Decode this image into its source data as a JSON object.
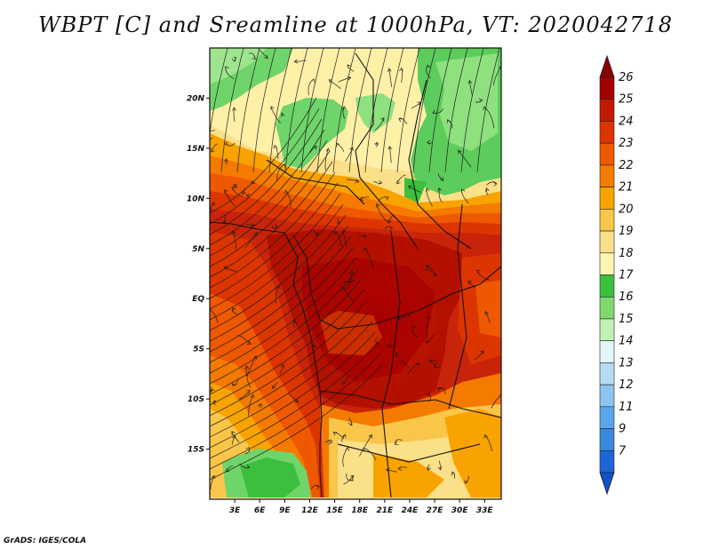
{
  "title": "WBPT [C] and Sreamline at 1000hPa, VT: 2020042718",
  "credit": "GrADS: IGES/COLA",
  "map": {
    "lon_range": [
      0,
      35
    ],
    "lat_range": [
      -20,
      25
    ],
    "lat_ticks": [
      {
        "value": 20,
        "label": "20N"
      },
      {
        "value": 15,
        "label": "15N"
      },
      {
        "value": 10,
        "label": "10N"
      },
      {
        "value": 5,
        "label": "5N"
      },
      {
        "value": 0,
        "label": "EQ"
      },
      {
        "value": -5,
        "label": "5S"
      },
      {
        "value": -10,
        "label": "10S"
      },
      {
        "value": -15,
        "label": "15S"
      }
    ],
    "lon_ticks": [
      {
        "value": 3,
        "label": "3E"
      },
      {
        "value": 6,
        "label": "6E"
      },
      {
        "value": 9,
        "label": "9E"
      },
      {
        "value": 12,
        "label": "12E"
      },
      {
        "value": 15,
        "label": "15E"
      },
      {
        "value": 18,
        "label": "18E"
      },
      {
        "value": 21,
        "label": "21E"
      },
      {
        "value": 24,
        "label": "24E"
      },
      {
        "value": 27,
        "label": "27E"
      },
      {
        "value": 30,
        "label": "30E"
      },
      {
        "value": 33,
        "label": "33E"
      }
    ]
  },
  "colorbar": {
    "levels": [
      {
        "label": "26",
        "color": "#a50000"
      },
      {
        "label": "25",
        "color": "#c11a00"
      },
      {
        "label": "24",
        "color": "#dd3500"
      },
      {
        "label": "23",
        "color": "#ee5800"
      },
      {
        "label": "22",
        "color": "#f57a00"
      },
      {
        "label": "21",
        "color": "#f9a300"
      },
      {
        "label": "20",
        "color": "#f9c64a"
      },
      {
        "label": "19",
        "color": "#fae088"
      },
      {
        "label": "18",
        "color": "#fff4b0"
      },
      {
        "label": "17",
        "color": "#3cbf3c"
      },
      {
        "label": "16",
        "color": "#7fd96f"
      },
      {
        "label": "15",
        "color": "#c3f0b5"
      },
      {
        "label": "14",
        "color": "#e2f6f7"
      },
      {
        "label": "13",
        "color": "#b5dcf5"
      },
      {
        "label": "12",
        "color": "#8ec4f0"
      },
      {
        "label": "11",
        "color": "#5aa6ea"
      },
      {
        "label": "9",
        "color": "#3a88e0"
      },
      {
        "label": "7",
        "color": "#1c66d6"
      }
    ],
    "top_color": "#8a0000",
    "bottom_color": "#1050c8"
  }
}
